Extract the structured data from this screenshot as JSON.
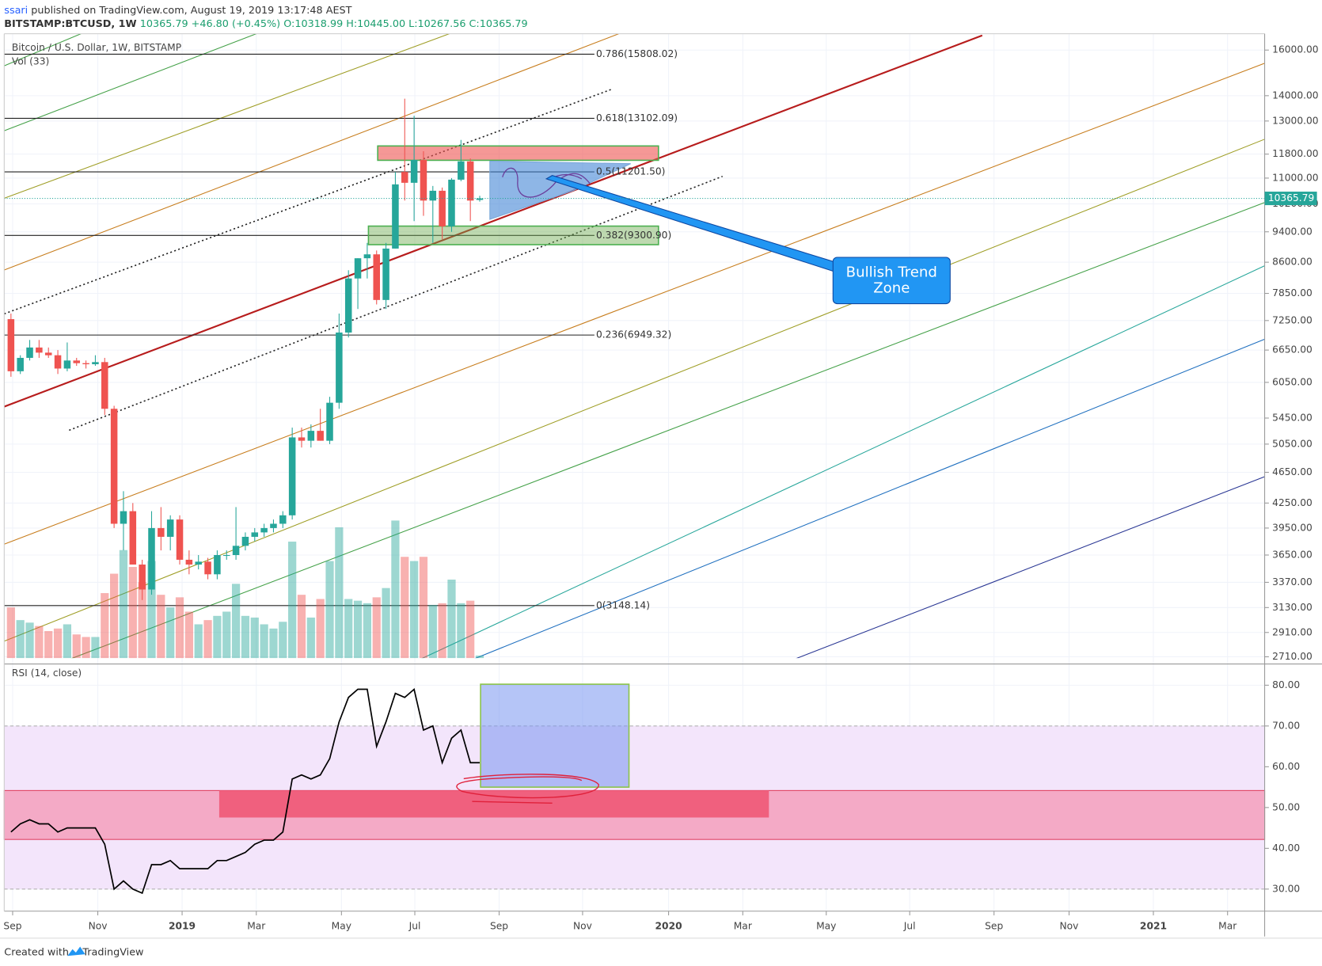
{
  "header": {
    "publisher": "ssari",
    "published": "published on TradingView.com, August 19, 2019 13:17:48 AEST",
    "symbol": "BITSTAMP:BTCUSD, 1W",
    "quote": "10365.79 +46.80 (+0.45%) O:10318.99 H:10445.00 L:10267.56 C:10365.79"
  },
  "chart_data": [
    {
      "type": "candlestick",
      "title": "Bitcoin / U.S. Dollar, 1W, BITSTAMP",
      "volume_label": "Vol (33)",
      "open": [
        7280,
        6250,
        6500,
        6700,
        6600,
        6550,
        6300,
        6450,
        6400,
        6380,
        6420,
        5600,
        4000,
        4150,
        3550,
        3300,
        3950,
        3850,
        4050,
        3600,
        3550,
        3580,
        3450,
        3650,
        3650,
        3750,
        3850,
        3900,
        3950,
        4000,
        4100,
        5150,
        5100,
        5250,
        5100,
        5700,
        7000,
        8200,
        8700,
        8800,
        7700,
        8950,
        11200,
        10850,
        11600,
        10300,
        10600,
        9550,
        10950,
        11550,
        10318.99
      ],
      "high": [
        7400,
        6550,
        6850,
        6850,
        6700,
        6650,
        6800,
        6500,
        6450,
        6550,
        6500,
        5650,
        4400,
        4250,
        3600,
        4150,
        4200,
        4100,
        4100,
        3700,
        3650,
        3620,
        3700,
        3700,
        4200,
        3900,
        3950,
        4000,
        4050,
        4150,
        5300,
        5300,
        5350,
        5600,
        5800,
        7400,
        8400,
        8700,
        9100,
        8900,
        9100,
        11200,
        13880,
        13200,
        11900,
        10750,
        10700,
        11000,
        12300,
        11650,
        10445
      ],
      "low": [
        6150,
        6200,
        6450,
        6500,
        6500,
        6200,
        6250,
        6350,
        6300,
        6350,
        5500,
        3950,
        3700,
        3550,
        3200,
        3250,
        3700,
        3700,
        3550,
        3450,
        3500,
        3400,
        3400,
        3600,
        3600,
        3700,
        3800,
        3850,
        3900,
        3950,
        4050,
        5000,
        5000,
        5100,
        5050,
        5600,
        6900,
        7500,
        8200,
        7600,
        7500,
        8950,
        10300,
        9700,
        9850,
        9100,
        9200,
        9400,
        10900,
        9700,
        10267.56
      ],
      "close": [
        6250,
        6500,
        6700,
        6600,
        6550,
        6300,
        6450,
        6400,
        6380,
        6420,
        5600,
        4000,
        4150,
        3550,
        3300,
        3950,
        3850,
        4050,
        3600,
        3550,
        3580,
        3450,
        3650,
        3650,
        3750,
        3850,
        3900,
        3950,
        4000,
        4100,
        5150,
        5100,
        5250,
        5100,
        5700,
        7000,
        8200,
        8700,
        8800,
        7700,
        8950,
        10800,
        10850,
        11600,
        10300,
        10600,
        9550,
        10950,
        11550,
        10300,
        10365.79
      ],
      "volume": [
        60,
        45,
        42,
        38,
        32,
        35,
        40,
        28,
        25,
        25,
        77,
        100,
        128,
        108,
        90,
        115,
        75,
        60,
        72,
        55,
        40,
        45,
        50,
        55,
        88,
        50,
        48,
        40,
        35,
        43,
        138,
        75,
        48,
        70,
        115,
        155,
        70,
        68,
        65,
        72,
        83,
        163,
        120,
        115,
        120,
        63,
        65,
        93,
        65,
        68,
        3
      ],
      "up_color": "#26a69a",
      "down_color": "#ef5350",
      "log_scale": true,
      "grid": true,
      "ylim": [
        2700,
        16700
      ],
      "yticks": [
        {
          "value": 2710,
          "label": "2710.00"
        },
        {
          "value": 2910,
          "label": "2910.00"
        },
        {
          "value": 3130,
          "label": "3130.00"
        },
        {
          "value": 3370,
          "label": "3370.00"
        },
        {
          "value": 3650,
          "label": "3650.00"
        },
        {
          "value": 3950,
          "label": "3950.00"
        },
        {
          "value": 4250,
          "label": "4250.00"
        },
        {
          "value": 4650,
          "label": "4650.00"
        },
        {
          "value": 5050,
          "label": "5050.00"
        },
        {
          "value": 5450,
          "label": "5450.00"
        },
        {
          "value": 6050,
          "label": "6050.00"
        },
        {
          "value": 6650,
          "label": "6650.00"
        },
        {
          "value": 7250,
          "label": "7250.00"
        },
        {
          "value": 7850,
          "label": "7850.00"
        },
        {
          "value": 8600,
          "label": "8600.00"
        },
        {
          "value": 9400,
          "label": "9400.00"
        },
        {
          "value": 10200,
          "label": "10200.00"
        },
        {
          "value": 11000,
          "label": "11000.00"
        },
        {
          "value": 11800,
          "label": "11800.00"
        },
        {
          "value": 13000,
          "label": "13000.00"
        },
        {
          "value": 14000,
          "label": "14000.00"
        },
        {
          "value": 16000,
          "label": "16000.00"
        }
      ],
      "last_price": 10365.79,
      "fib_levels": [
        {
          "value": 15808.02,
          "label": "0.786(15808.02)"
        },
        {
          "value": 13102.09,
          "label": "0.618(13102.09)"
        },
        {
          "value": 11201.5,
          "label": "0.5(11201.50)"
        },
        {
          "value": 9300.9,
          "label": "0.382(9300.90)"
        },
        {
          "value": 6949.32,
          "label": "0.236(6949.32)"
        },
        {
          "value": 3148.14,
          "label": "0(3148.14)"
        }
      ],
      "annotation": "Bullish Trend Zone"
    },
    {
      "type": "line",
      "title": "RSI (14, close)",
      "color": "#000000",
      "values": [
        44,
        46,
        47,
        46,
        46,
        44,
        45,
        45,
        45,
        45,
        41,
        30,
        32,
        30,
        29,
        36,
        36,
        37,
        35,
        35,
        35,
        35,
        37,
        37,
        38,
        39,
        41,
        42,
        42,
        44,
        57,
        58,
        57,
        58,
        62,
        71,
        77,
        79,
        79,
        65,
        71,
        78,
        77,
        79,
        69,
        70,
        61,
        67,
        69,
        61,
        61
      ],
      "ylim": [
        25,
        85
      ],
      "band": [
        30,
        70
      ],
      "yticks": [
        {
          "value": 30,
          "label": "30.00"
        },
        {
          "value": 40,
          "label": "40.00"
        },
        {
          "value": 50,
          "label": "50.00"
        },
        {
          "value": 60,
          "label": "60.00"
        },
        {
          "value": 70,
          "label": "70.00"
        },
        {
          "value": 80,
          "label": "80.00"
        }
      ]
    }
  ],
  "x_labels": [
    "Sep",
    "Nov",
    "2019",
    "Mar",
    "May",
    "Jul",
    "Sep",
    "Nov",
    "2020",
    "Mar",
    "May",
    "Jul",
    "Sep",
    "Nov",
    "2021",
    "Mar"
  ],
  "footer": {
    "created": "Created with",
    "brand": "TradingView"
  }
}
